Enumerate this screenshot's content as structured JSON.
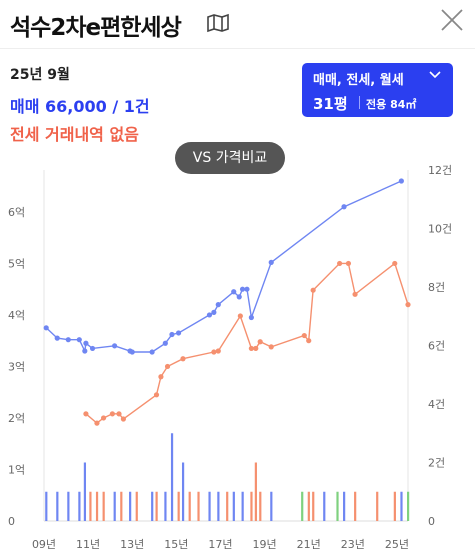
{
  "header": {
    "title": "석수2차e편한세상"
  },
  "summary": {
    "date": "25년 9월",
    "sale": "매매 66,000 / 1건",
    "rent": "전세 거래내역 없음"
  },
  "filter": {
    "types": "매매, 전세, 월세",
    "pyeong": "31평",
    "area": "전용 84㎡"
  },
  "compare_button": "VS 가격비교",
  "colors": {
    "sale": "#6f86f2",
    "rent": "#f5906f",
    "accent": "#2b3ff0",
    "volume_green": "#7fd17f"
  },
  "chart_data": {
    "type": "line",
    "x_ticks": [
      "09년",
      "11년",
      "13년",
      "15년",
      "17년",
      "19년",
      "21년",
      "23년",
      "25년"
    ],
    "y_left_ticks": [
      "0",
      "1억",
      "2억",
      "3억",
      "4억",
      "5억",
      "6억"
    ],
    "y_right_ticks": [
      "0",
      "2건",
      "4건",
      "6건",
      "8건",
      "10건",
      "12건"
    ],
    "y_left_range": [
      0,
      6.6
    ],
    "y_right_range": [
      0,
      12
    ],
    "series": [
      {
        "color": "#6f86f2",
        "points": [
          [
            2009.1,
            3.75
          ],
          [
            2009.6,
            3.55
          ],
          [
            2010.1,
            3.52
          ],
          [
            2010.6,
            3.52
          ],
          [
            2010.85,
            3.3
          ],
          [
            2010.9,
            3.45
          ],
          [
            2011.2,
            3.35
          ],
          [
            2012.2,
            3.4
          ],
          [
            2012.9,
            3.3
          ],
          [
            2013.0,
            3.28
          ],
          [
            2013.9,
            3.28
          ],
          [
            2014.5,
            3.45
          ],
          [
            2014.8,
            3.62
          ],
          [
            2015.1,
            3.65
          ],
          [
            2016.5,
            4.0
          ],
          [
            2016.7,
            4.05
          ],
          [
            2016.9,
            4.2
          ],
          [
            2017.6,
            4.45
          ],
          [
            2017.85,
            4.35
          ],
          [
            2018.0,
            4.5
          ],
          [
            2018.2,
            4.5
          ],
          [
            2018.4,
            3.95
          ],
          [
            2019.3,
            5.02
          ],
          [
            2022.6,
            6.1
          ],
          [
            2025.2,
            6.6
          ]
        ]
      },
      {
        "color": "#f5906f",
        "points": [
          [
            2010.9,
            2.08
          ],
          [
            2011.4,
            1.9
          ],
          [
            2011.7,
            2.0
          ],
          [
            2012.1,
            2.08
          ],
          [
            2012.4,
            2.08
          ],
          [
            2012.6,
            1.98
          ],
          [
            2014.1,
            2.45
          ],
          [
            2014.3,
            2.8
          ],
          [
            2014.6,
            3.0
          ],
          [
            2015.3,
            3.15
          ],
          [
            2016.7,
            3.28
          ],
          [
            2016.9,
            3.3
          ],
          [
            2017.9,
            3.98
          ],
          [
            2018.4,
            3.35
          ],
          [
            2018.6,
            3.35
          ],
          [
            2018.8,
            3.48
          ],
          [
            2019.3,
            3.38
          ],
          [
            2020.8,
            3.6
          ],
          [
            2021.0,
            3.5
          ],
          [
            2021.2,
            4.48
          ],
          [
            2022.4,
            5.0
          ],
          [
            2022.8,
            5.0
          ],
          [
            2023.1,
            4.4
          ],
          [
            2024.9,
            5.0
          ],
          [
            2025.5,
            4.2
          ]
        ]
      }
    ],
    "volume_bars": [
      {
        "x": 2009.1,
        "v": 1,
        "c": "#6f86f2"
      },
      {
        "x": 2009.6,
        "v": 1,
        "c": "#6f86f2"
      },
      {
        "x": 2010.1,
        "v": 1,
        "c": "#6f86f2"
      },
      {
        "x": 2010.6,
        "v": 1,
        "c": "#6f86f2"
      },
      {
        "x": 2010.85,
        "v": 2,
        "c": "#6f86f2"
      },
      {
        "x": 2011.1,
        "v": 1,
        "c": "#f5906f"
      },
      {
        "x": 2011.4,
        "v": 1,
        "c": "#f5906f"
      },
      {
        "x": 2011.7,
        "v": 1,
        "c": "#f5906f"
      },
      {
        "x": 2012.2,
        "v": 1,
        "c": "#6f86f2"
      },
      {
        "x": 2012.5,
        "v": 1,
        "c": "#f5906f"
      },
      {
        "x": 2012.9,
        "v": 1,
        "c": "#6f86f2"
      },
      {
        "x": 2013.2,
        "v": 1,
        "c": "#f5906f"
      },
      {
        "x": 2013.9,
        "v": 1,
        "c": "#6f86f2"
      },
      {
        "x": 2014.1,
        "v": 1,
        "c": "#f5906f"
      },
      {
        "x": 2014.5,
        "v": 1,
        "c": "#6f86f2"
      },
      {
        "x": 2014.8,
        "v": 3,
        "c": "#6f86f2"
      },
      {
        "x": 2015.1,
        "v": 1,
        "c": "#f5906f"
      },
      {
        "x": 2015.3,
        "v": 2,
        "c": "#6f86f2"
      },
      {
        "x": 2015.6,
        "v": 1,
        "c": "#f5906f"
      },
      {
        "x": 2016.0,
        "v": 1,
        "c": "#f5906f"
      },
      {
        "x": 2016.5,
        "v": 1,
        "c": "#6f86f2"
      },
      {
        "x": 2016.9,
        "v": 1,
        "c": "#6f86f2"
      },
      {
        "x": 2017.3,
        "v": 1,
        "c": "#f5906f"
      },
      {
        "x": 2017.6,
        "v": 1,
        "c": "#6f86f2"
      },
      {
        "x": 2018.0,
        "v": 1,
        "c": "#6f86f2"
      },
      {
        "x": 2018.4,
        "v": 1,
        "c": "#f5906f"
      },
      {
        "x": 2018.6,
        "v": 2,
        "c": "#f5906f"
      },
      {
        "x": 2018.8,
        "v": 1,
        "c": "#f5906f"
      },
      {
        "x": 2019.3,
        "v": 1,
        "c": "#6f86f2"
      },
      {
        "x": 2020.7,
        "v": 1,
        "c": "#7fd17f"
      },
      {
        "x": 2021.0,
        "v": 1,
        "c": "#f5906f"
      },
      {
        "x": 2021.2,
        "v": 1,
        "c": "#f5906f"
      },
      {
        "x": 2021.7,
        "v": 1,
        "c": "#6f86f2"
      },
      {
        "x": 2022.3,
        "v": 1,
        "c": "#7fd17f"
      },
      {
        "x": 2022.6,
        "v": 1,
        "c": "#6f86f2"
      },
      {
        "x": 2023.1,
        "v": 1,
        "c": "#f5906f"
      },
      {
        "x": 2024.1,
        "v": 1,
        "c": "#f5906f"
      },
      {
        "x": 2024.9,
        "v": 1,
        "c": "#f5906f"
      },
      {
        "x": 2025.2,
        "v": 1,
        "c": "#6f86f2"
      },
      {
        "x": 2025.5,
        "v": 1,
        "c": "#7fd17f"
      }
    ]
  }
}
